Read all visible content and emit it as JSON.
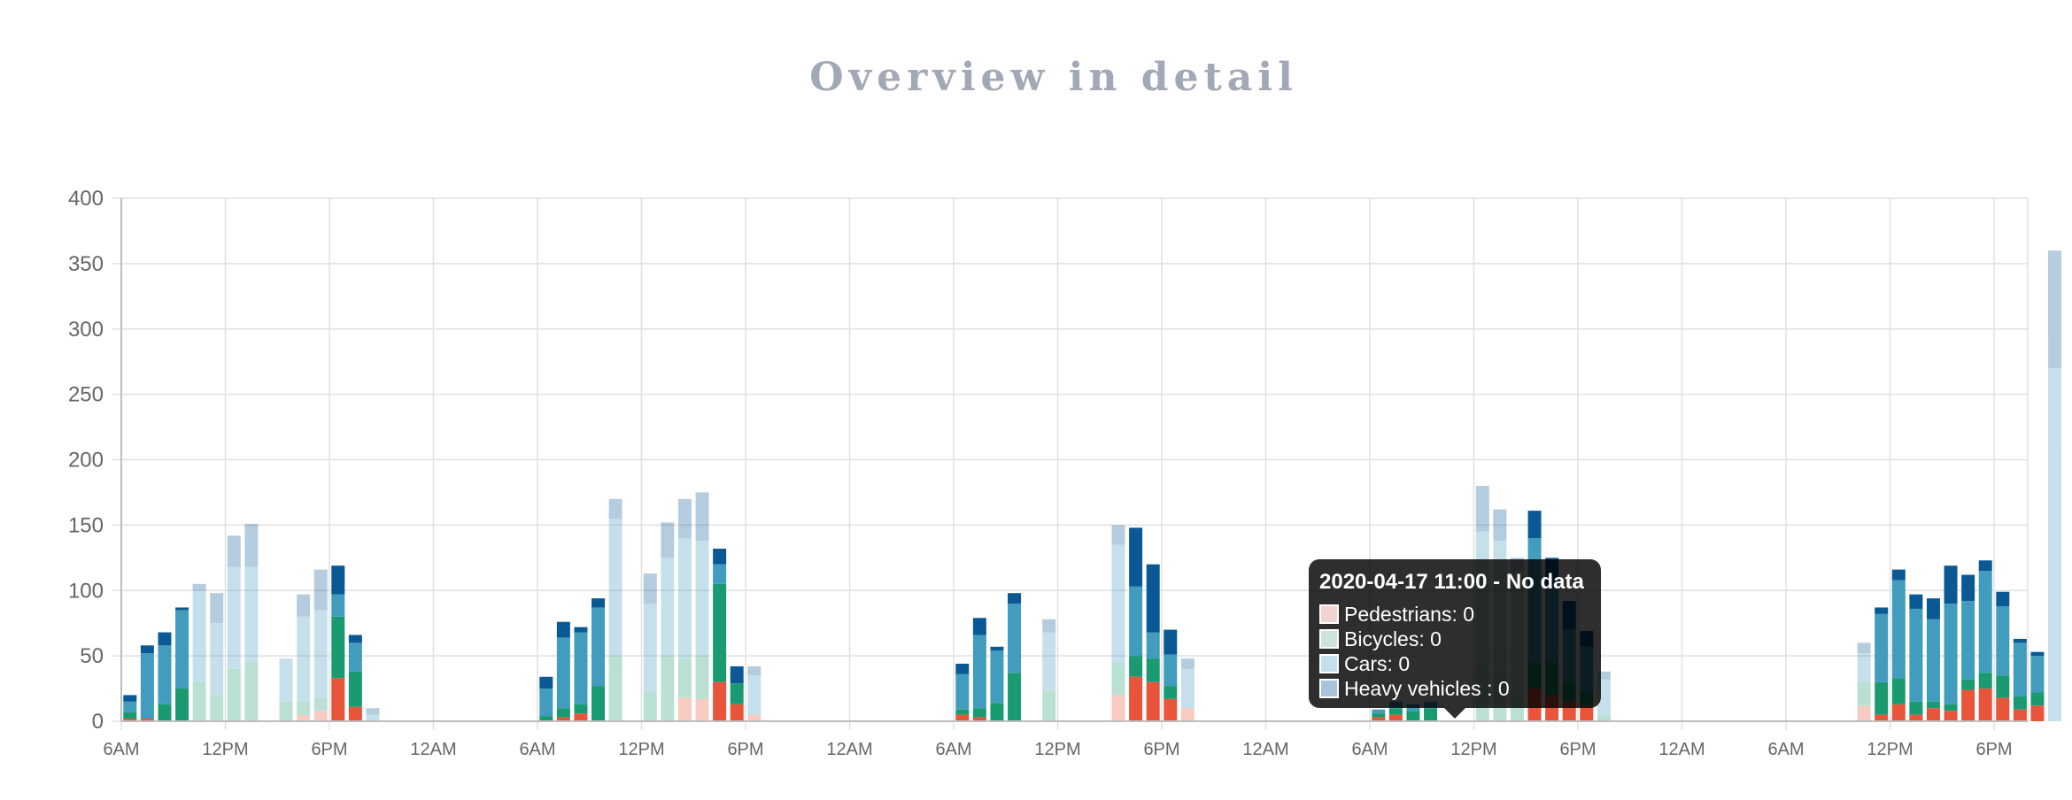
{
  "title": "Overview in detail",
  "colors": {
    "pedestrians": "#e8553a",
    "bicycles": "#1a9a70",
    "cars": "#419cbd",
    "heavy_vehicles": "#0b5994",
    "grid": "#e0e0e0",
    "axis": "#bdbdbd"
  },
  "tooltip": {
    "title": "2020-04-17 11:00 - No data",
    "rows": [
      {
        "label": "Pedestrians: 0",
        "swatch": "#f2d3d0"
      },
      {
        "label": "Bicycles: 0",
        "swatch": "#cbe3da"
      },
      {
        "label": "Cars: 0",
        "swatch": "#c5e0ea"
      },
      {
        "label": "Heavy vehicles : 0",
        "swatch": "#a8c2db"
      }
    ]
  },
  "chart_data": {
    "type": "bar",
    "stacked": true,
    "ylim": [
      0,
      400
    ],
    "yticks": [
      0,
      50,
      100,
      150,
      200,
      250,
      300,
      350,
      400
    ],
    "xticks": [
      "6AM",
      "12PM",
      "6PM",
      "12AM",
      "6AM",
      "12PM",
      "6PM",
      "12AM",
      "6AM",
      "12PM",
      "6PM",
      "12AM",
      "6AM",
      "12PM",
      "6PM",
      "12AM",
      "6AM",
      "12PM",
      "6PM"
    ],
    "grid": true,
    "legend": "none",
    "series_names": [
      "Pedestrians",
      "Bicycles",
      "Cars",
      "Heavy vehicles"
    ],
    "bars": [
      {
        "day": 0,
        "hour": 6,
        "values": [
          2,
          5,
          8,
          5
        ],
        "faded": false
      },
      {
        "day": 0,
        "hour": 7,
        "values": [
          2,
          0,
          50,
          6
        ],
        "faded": false
      },
      {
        "day": 0,
        "hour": 8,
        "values": [
          0,
          13,
          45,
          10
        ],
        "faded": false
      },
      {
        "day": 0,
        "hour": 9,
        "values": [
          0,
          25,
          60,
          2
        ],
        "faded": false
      },
      {
        "day": 0,
        "hour": 10,
        "values": [
          0,
          30,
          70,
          5
        ],
        "faded": true
      },
      {
        "day": 0,
        "hour": 11,
        "values": [
          0,
          20,
          55,
          23
        ],
        "faded": true
      },
      {
        "day": 0,
        "hour": 12,
        "values": [
          0,
          40,
          78,
          24
        ],
        "faded": true
      },
      {
        "day": 0,
        "hour": 13,
        "values": [
          0,
          45,
          73,
          33
        ],
        "faded": true
      },
      {
        "day": 0,
        "hour": 15,
        "values": [
          0,
          15,
          33,
          0
        ],
        "faded": true
      },
      {
        "day": 0,
        "hour": 16,
        "values": [
          5,
          10,
          65,
          17
        ],
        "faded": true
      },
      {
        "day": 0,
        "hour": 17,
        "values": [
          8,
          10,
          67,
          31
        ],
        "faded": true
      },
      {
        "day": 0,
        "hour": 18,
        "values": [
          33,
          47,
          17,
          22
        ],
        "faded": false
      },
      {
        "day": 0,
        "hour": 19,
        "values": [
          11,
          27,
          22,
          6
        ],
        "faded": false
      },
      {
        "day": 0,
        "hour": 20,
        "values": [
          0,
          0,
          5,
          5
        ],
        "faded": true
      },
      {
        "day": 1,
        "hour": 6,
        "values": [
          0,
          4,
          21,
          9
        ],
        "faded": false
      },
      {
        "day": 1,
        "hour": 7,
        "values": [
          3,
          7,
          54,
          12
        ],
        "faded": false
      },
      {
        "day": 1,
        "hour": 8,
        "values": [
          6,
          7,
          55,
          4
        ],
        "faded": false
      },
      {
        "day": 1,
        "hour": 9,
        "values": [
          0,
          27,
          60,
          7
        ],
        "faded": false
      },
      {
        "day": 1,
        "hour": 10,
        "values": [
          0,
          50,
          105,
          15
        ],
        "faded": true
      },
      {
        "day": 1,
        "hour": 12,
        "values": [
          0,
          22,
          68,
          23
        ],
        "faded": true
      },
      {
        "day": 1,
        "hour": 13,
        "values": [
          0,
          50,
          75,
          27
        ],
        "faded": true
      },
      {
        "day": 1,
        "hour": 14,
        "values": [
          18,
          30,
          92,
          30
        ],
        "faded": true
      },
      {
        "day": 1,
        "hour": 15,
        "values": [
          17,
          33,
          88,
          37
        ],
        "faded": true
      },
      {
        "day": 1,
        "hour": 16,
        "values": [
          30,
          75,
          15,
          12
        ],
        "faded": false
      },
      {
        "day": 1,
        "hour": 17,
        "values": [
          13,
          16,
          0,
          13
        ],
        "faded": false
      },
      {
        "day": 1,
        "hour": 18,
        "values": [
          5,
          0,
          30,
          7
        ],
        "faded": true
      },
      {
        "day": 2,
        "hour": 6,
        "values": [
          5,
          4,
          27,
          8
        ],
        "faded": false
      },
      {
        "day": 2,
        "hour": 7,
        "values": [
          3,
          7,
          56,
          13
        ],
        "faded": false
      },
      {
        "day": 2,
        "hour": 8,
        "values": [
          0,
          14,
          40,
          3
        ],
        "faded": false
      },
      {
        "day": 2,
        "hour": 9,
        "values": [
          0,
          37,
          53,
          8
        ],
        "faded": false
      },
      {
        "day": 2,
        "hour": 11,
        "values": [
          0,
          23,
          45,
          10
        ],
        "faded": true
      },
      {
        "day": 2,
        "hour": 15,
        "values": [
          20,
          25,
          90,
          15
        ],
        "faded": true
      },
      {
        "day": 2,
        "hour": 16,
        "values": [
          34,
          16,
          53,
          45
        ],
        "faded": false
      },
      {
        "day": 2,
        "hour": 17,
        "values": [
          30,
          18,
          20,
          52
        ],
        "faded": false
      },
      {
        "day": 2,
        "hour": 18,
        "values": [
          17,
          10,
          24,
          19
        ],
        "faded": false
      },
      {
        "day": 2,
        "hour": 19,
        "values": [
          10,
          0,
          30,
          8
        ],
        "faded": true
      },
      {
        "day": 3,
        "hour": 6,
        "values": [
          3,
          3,
          3,
          0
        ],
        "faded": false
      },
      {
        "day": 3,
        "hour": 7,
        "values": [
          5,
          5,
          5,
          0
        ],
        "faded": false
      },
      {
        "day": 3,
        "hour": 8,
        "values": [
          0,
          8,
          5,
          0
        ],
        "faded": false
      },
      {
        "day": 3,
        "hour": 9,
        "values": [
          0,
          10,
          5,
          0
        ],
        "faded": false
      },
      {
        "day": 3,
        "hour": 12,
        "values": [
          0,
          45,
          100,
          35
        ],
        "faded": true
      },
      {
        "day": 3,
        "hour": 13,
        "values": [
          0,
          38,
          100,
          24
        ],
        "faded": true
      },
      {
        "day": 3,
        "hour": 14,
        "values": [
          0,
          20,
          95,
          10
        ],
        "faded": true
      },
      {
        "day": 3,
        "hour": 15,
        "values": [
          25,
          20,
          95,
          21
        ],
        "faded": false
      },
      {
        "day": 3,
        "hour": 16,
        "values": [
          20,
          25,
          60,
          20
        ],
        "faded": false
      },
      {
        "day": 3,
        "hour": 17,
        "values": [
          15,
          15,
          40,
          22
        ],
        "faded": false
      },
      {
        "day": 3,
        "hour": 18,
        "values": [
          12,
          10,
          35,
          12
        ],
        "faded": false
      },
      {
        "day": 3,
        "hour": 19,
        "values": [
          0,
          5,
          27,
          6
        ],
        "faded": true
      },
      {
        "day": 4,
        "hour": 10,
        "values": [
          12,
          18,
          22,
          8
        ],
        "faded": true
      },
      {
        "day": 4,
        "hour": 11,
        "values": [
          5,
          25,
          52,
          5
        ],
        "faded": false
      },
      {
        "day": 4,
        "hour": 12,
        "values": [
          13,
          20,
          75,
          8
        ],
        "faded": false
      },
      {
        "day": 4,
        "hour": 13,
        "values": [
          5,
          10,
          71,
          11
        ],
        "faded": false
      },
      {
        "day": 4,
        "hour": 14,
        "values": [
          10,
          5,
          63,
          16
        ],
        "faded": false
      },
      {
        "day": 4,
        "hour": 15,
        "values": [
          8,
          5,
          77,
          29
        ],
        "faded": false
      },
      {
        "day": 4,
        "hour": 16,
        "values": [
          24,
          8,
          60,
          20
        ],
        "faded": false
      },
      {
        "day": 4,
        "hour": 17,
        "values": [
          25,
          12,
          78,
          8
        ],
        "faded": false
      },
      {
        "day": 4,
        "hour": 18,
        "values": [
          18,
          17,
          53,
          11
        ],
        "faded": false
      },
      {
        "day": 4,
        "hour": 19,
        "values": [
          9,
          10,
          41,
          3
        ],
        "faded": false
      },
      {
        "day": 4,
        "hour": 20,
        "values": [
          12,
          10,
          28,
          3
        ],
        "faded": false
      },
      {
        "day": 4,
        "hour": 21,
        "values": [
          0,
          0,
          270,
          90
        ],
        "faded": true
      }
    ]
  }
}
